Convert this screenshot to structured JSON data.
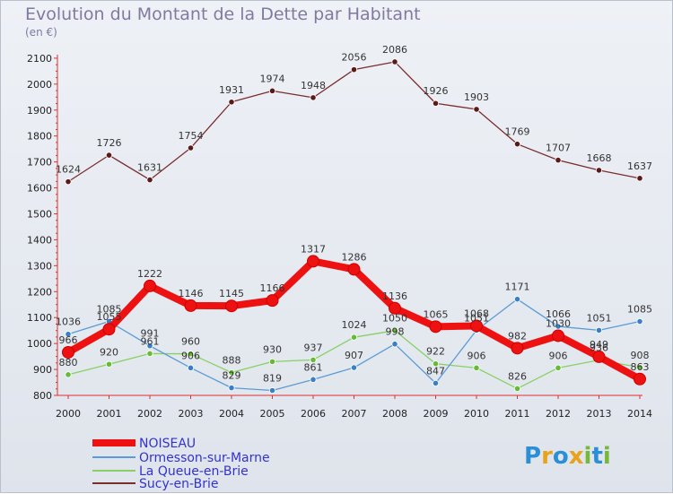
{
  "title": "Evolution du Montant de la Dette par Habitant",
  "subtitle": "(en €)",
  "brand": {
    "pieces": [
      {
        "text": "P",
        "color": "#2a8fd6"
      },
      {
        "text": "r",
        "color": "#e8a21b"
      },
      {
        "text": "o",
        "color": "#2a8fd6"
      },
      {
        "text": "x",
        "color": "#e8a21b"
      },
      {
        "text": "i",
        "color": "#76b83a"
      },
      {
        "text": "t",
        "color": "#2a8fd6"
      },
      {
        "text": "i",
        "color": "#76b83a"
      }
    ]
  },
  "chart_data": {
    "type": "line",
    "x": [
      "2000",
      "2001",
      "2002",
      "2003",
      "2004",
      "2005",
      "2006",
      "2007",
      "2008",
      "2009",
      "2010",
      "2011",
      "2012",
      "2013",
      "2014"
    ],
    "ylim": [
      800,
      2100
    ],
    "yticks": [
      800,
      900,
      1000,
      1100,
      1200,
      1300,
      1400,
      1500,
      1600,
      1700,
      1800,
      1900,
      2000,
      2100
    ],
    "grid": false,
    "legend_position": "bottom-left",
    "series": [
      {
        "name": "NOISEAU",
        "color": "#ee1111",
        "values": [
          966,
          1055,
          1222,
          1146,
          1145,
          1166,
          1317,
          1286,
          1136,
          1065,
          1068,
          982,
          1030,
          949,
          863
        ]
      },
      {
        "name": "Ormesson-sur-Marne",
        "color": "#5b9bd5",
        "values": [
          1036,
          1085,
          991,
          906,
          829,
          819,
          861,
          907,
          998,
          847,
          1051,
          1171,
          1066,
          1051,
          1085
        ]
      },
      {
        "name": "La Queue-en-Brie",
        "color": "#88d066",
        "values": [
          880,
          920,
          961,
          960,
          888,
          930,
          937,
          1024,
          1050,
          922,
          906,
          826,
          906,
          936,
          908
        ]
      },
      {
        "name": "Sucy-en-Brie",
        "color": "#7a2e2e",
        "values": [
          1624,
          1726,
          1631,
          1754,
          1931,
          1974,
          1948,
          2056,
          2086,
          1926,
          1903,
          1769,
          1707,
          1668,
          1637
        ]
      }
    ]
  }
}
